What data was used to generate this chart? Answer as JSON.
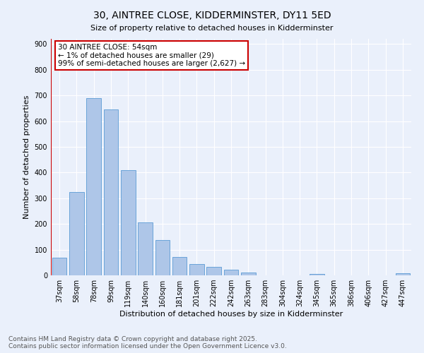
{
  "title": "30, AINTREE CLOSE, KIDDERMINSTER, DY11 5ED",
  "subtitle": "Size of property relative to detached houses in Kidderminster",
  "xlabel": "Distribution of detached houses by size in Kidderminster",
  "ylabel": "Number of detached properties",
  "categories": [
    "37sqm",
    "58sqm",
    "78sqm",
    "99sqm",
    "119sqm",
    "140sqm",
    "160sqm",
    "181sqm",
    "201sqm",
    "222sqm",
    "242sqm",
    "263sqm",
    "283sqm",
    "304sqm",
    "324sqm",
    "345sqm",
    "365sqm",
    "386sqm",
    "406sqm",
    "427sqm",
    "447sqm"
  ],
  "values": [
    70,
    325,
    690,
    645,
    410,
    207,
    138,
    72,
    45,
    32,
    21,
    10,
    0,
    0,
    0,
    5,
    0,
    0,
    0,
    0,
    7
  ],
  "bar_color": "#aec6e8",
  "bar_edge_color": "#5b9bd5",
  "vline_color": "#cc0000",
  "annotation_text": "30 AINTREE CLOSE: 54sqm\n← 1% of detached houses are smaller (29)\n99% of semi-detached houses are larger (2,627) →",
  "annotation_box_color": "#ffffff",
  "annotation_box_edge_color": "#cc0000",
  "ylim": [
    0,
    920
  ],
  "yticks": [
    0,
    100,
    200,
    300,
    400,
    500,
    600,
    700,
    800,
    900
  ],
  "background_color": "#eaf0fb",
  "grid_color": "#ffffff",
  "footer": "Contains HM Land Registry data © Crown copyright and database right 2025.\nContains public sector information licensed under the Open Government Licence v3.0.",
  "title_fontsize": 10,
  "xlabel_fontsize": 8,
  "ylabel_fontsize": 8,
  "tick_fontsize": 7,
  "footer_fontsize": 6.5,
  "annotation_fontsize": 7.5
}
